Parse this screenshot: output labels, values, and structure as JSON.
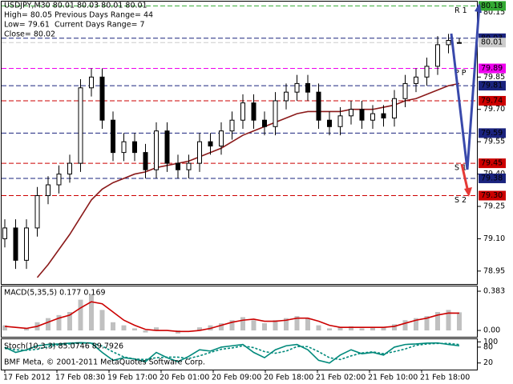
{
  "header": {
    "line1": "USDJPY,M30  80.01 80.03 80.01 80.01",
    "high": "High= 80.05",
    "prev_range": "Previous Days Range= 44",
    "low": "Low= 79.61",
    "cur_range": "Current Days Range= 7",
    "close": "Close= 80.02"
  },
  "footer": "BMF Meta, © 2001-2011 MetaQuotes Software Corp.",
  "x_labels": [
    "17 Feb 2012",
    "17 Feb 08:30",
    "19 Feb 17:00",
    "20 Feb 01:00",
    "20 Feb 09:00",
    "20 Feb 18:00",
    "21 Feb 02:00",
    "21 Feb 10:00",
    "21 Feb 18:00"
  ],
  "chart_data": [
    {
      "type": "candlestick",
      "title": "USDJPY,M30",
      "ylim": [
        78.89,
        80.2
      ],
      "yticks": [
        78.95,
        {
          "value": 79.1,
          "label": "79.10"
        },
        79.25,
        {
          "value": 79.4,
          "label": "79.40"
        },
        79.55,
        {
          "value": 79.7,
          "label": "79.70"
        },
        79.85,
        80.15
      ],
      "up_color": "#000000",
      "down_color": "#000000",
      "open": [
        79.1,
        79.15,
        79.0,
        79.15,
        79.3,
        79.35,
        79.4,
        79.45,
        79.8,
        79.85,
        79.65,
        79.5,
        79.55,
        79.5,
        79.42,
        79.6,
        79.45,
        79.42,
        79.45,
        79.55,
        79.53,
        79.6,
        79.65,
        79.73,
        79.65,
        79.62,
        79.74,
        79.78,
        79.82,
        79.78,
        79.65,
        79.62,
        79.67,
        79.7,
        79.65,
        79.68,
        79.66,
        79.75,
        79.82,
        79.85,
        79.9,
        80.0,
        80.01
      ],
      "high": [
        79.19,
        79.19,
        79.19,
        79.34,
        79.39,
        79.44,
        79.49,
        79.84,
        79.89,
        79.89,
        79.69,
        79.59,
        79.59,
        79.54,
        79.64,
        79.64,
        79.49,
        79.49,
        79.59,
        79.59,
        79.64,
        79.69,
        79.77,
        79.77,
        79.69,
        79.78,
        79.82,
        79.86,
        79.86,
        79.82,
        79.69,
        79.71,
        79.74,
        79.74,
        79.72,
        79.72,
        79.79,
        79.86,
        79.89,
        79.94,
        80.04,
        80.05,
        80.03
      ],
      "low": [
        79.06,
        78.96,
        78.96,
        79.11,
        79.26,
        79.31,
        79.36,
        79.41,
        79.76,
        79.61,
        79.46,
        79.46,
        79.46,
        79.38,
        79.38,
        79.41,
        79.38,
        79.38,
        79.41,
        79.49,
        79.49,
        79.56,
        79.61,
        79.61,
        79.58,
        79.58,
        79.7,
        79.74,
        79.74,
        79.61,
        79.58,
        79.58,
        79.63,
        79.61,
        79.61,
        79.62,
        79.62,
        79.71,
        79.78,
        79.81,
        79.86,
        79.96,
        80.01
      ],
      "close": [
        79.15,
        79.0,
        79.15,
        79.3,
        79.35,
        79.4,
        79.45,
        79.8,
        79.85,
        79.65,
        79.5,
        79.55,
        79.5,
        79.42,
        79.6,
        79.45,
        79.42,
        79.45,
        79.55,
        79.53,
        79.6,
        79.65,
        79.73,
        79.65,
        79.62,
        79.74,
        79.78,
        79.82,
        79.78,
        79.65,
        79.62,
        79.67,
        79.7,
        79.65,
        79.68,
        79.66,
        79.75,
        79.82,
        79.85,
        79.9,
        80.0,
        80.02,
        80.01
      ],
      "series": [
        {
          "color": "#8b1a1a",
          "values": [
            null,
            null,
            null,
            78.92,
            78.98,
            79.05,
            79.12,
            79.2,
            79.28,
            79.33,
            79.36,
            79.38,
            79.4,
            79.41,
            79.43,
            79.44,
            79.45,
            79.46,
            79.48,
            79.5,
            79.52,
            79.55,
            79.58,
            79.6,
            79.62,
            79.64,
            79.66,
            79.68,
            79.69,
            79.69,
            79.69,
            79.69,
            79.7,
            79.7,
            79.7,
            79.71,
            79.72,
            79.74,
            79.75,
            79.77,
            79.79,
            79.81,
            79.82
          ]
        }
      ],
      "levels": [
        {
          "value": 80.18,
          "label": "80.18",
          "color": "#33aa33",
          "tag": "R 1"
        },
        {
          "value": 80.03,
          "label": "80.03",
          "color": "#1a237e"
        },
        {
          "value": 80.01,
          "label": "80.01",
          "color": "#cccccc"
        },
        {
          "value": 79.89,
          "label": "79.89",
          "color": "#ee00ee",
          "tag": "P P"
        },
        {
          "value": 79.81,
          "label": "79.81",
          "color": "#1a237e"
        },
        {
          "value": 79.74,
          "label": "79.74",
          "color": "#cc0000"
        },
        {
          "value": 79.59,
          "label": "79.59",
          "color": "#1a237e"
        },
        {
          "value": 79.45,
          "label": "79.45",
          "color": "#cc0000",
          "tag": "S 1"
        },
        {
          "value": 79.38,
          "label": "79.38",
          "color": "#1a237e"
        },
        {
          "value": 79.3,
          "label": "79.30",
          "color": "#cc0000",
          "tag": "S 2"
        }
      ]
    },
    {
      "type": "macd",
      "title": "MACD(5,35,5) 0.177 0.169",
      "ylim": [
        -0.07,
        0.43
      ],
      "yticks": [
        0.383,
        {
          "value": 0,
          "label": "0.00"
        }
      ],
      "hist_color": "#c0c0c0",
      "signal_color": "#cc0000",
      "values": [
        0.05,
        0.0,
        0.02,
        0.08,
        0.12,
        0.15,
        0.18,
        0.3,
        0.35,
        0.2,
        0.08,
        0.05,
        0.02,
        -0.02,
        0.03,
        0.0,
        -0.03,
        0.0,
        0.03,
        0.05,
        0.07,
        0.1,
        0.13,
        0.1,
        0.07,
        0.1,
        0.12,
        0.14,
        0.12,
        0.05,
        0.02,
        0.03,
        0.04,
        0.02,
        0.03,
        0.03,
        0.06,
        0.1,
        0.12,
        0.14,
        0.18,
        0.2,
        0.177
      ],
      "signal": [
        0.04,
        0.03,
        0.02,
        0.04,
        0.08,
        0.12,
        0.15,
        0.22,
        0.28,
        0.26,
        0.18,
        0.1,
        0.05,
        0.01,
        0.0,
        0.0,
        -0.01,
        -0.01,
        0.0,
        0.02,
        0.05,
        0.08,
        0.1,
        0.11,
        0.09,
        0.09,
        0.1,
        0.12,
        0.12,
        0.09,
        0.05,
        0.03,
        0.03,
        0.03,
        0.03,
        0.03,
        0.04,
        0.07,
        0.1,
        0.12,
        0.15,
        0.17,
        0.169
      ]
    },
    {
      "type": "stochastic",
      "title": "Stoch(10,3,3) 85.0746 89.7926",
      "ylim": [
        -5,
        110
      ],
      "yticks": [
        100,
        80,
        20
      ],
      "main_color": "#00897b",
      "signal_color": "#00897b",
      "values": [
        80,
        60,
        70,
        85,
        90,
        92,
        95,
        97,
        95,
        60,
        30,
        40,
        35,
        25,
        60,
        40,
        25,
        45,
        70,
        65,
        80,
        85,
        90,
        60,
        40,
        70,
        85,
        90,
        70,
        30,
        20,
        50,
        70,
        55,
        60,
        50,
        80,
        90,
        92,
        95,
        96,
        90,
        85.0746
      ],
      "signal": [
        75,
        70,
        68,
        72,
        82,
        89,
        92,
        95,
        96,
        84,
        62,
        43,
        35,
        33,
        40,
        42,
        42,
        37,
        47,
        60,
        72,
        77,
        85,
        78,
        63,
        57,
        65,
        82,
        82,
        63,
        40,
        33,
        47,
        58,
        62,
        55,
        63,
        73,
        87,
        92,
        94,
        94,
        89.7926
      ]
    }
  ]
}
